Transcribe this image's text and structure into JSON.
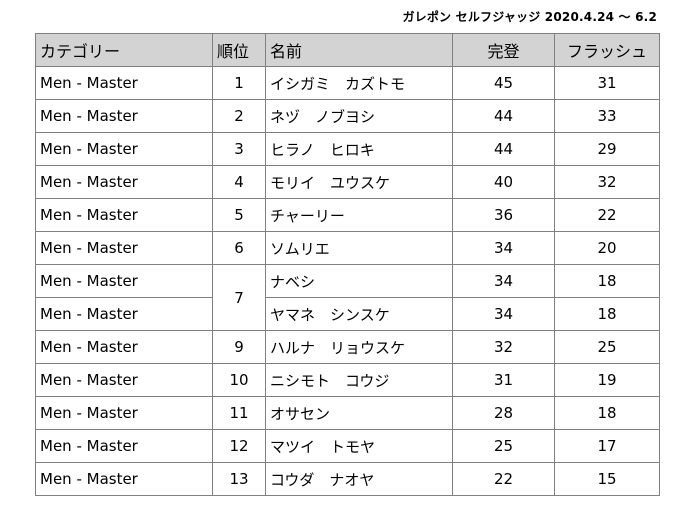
{
  "caption": "ガレポン セルフジャッジ 2020.4.24 〜 6.2",
  "headers": {
    "category": "カテゴリー",
    "rank": "順位",
    "name": "名前",
    "complete": "完登",
    "flash": "フラッシュ"
  },
  "rows": [
    {
      "category": "Men - Master",
      "rank": "1",
      "name": "イシガミ　カズトモ",
      "complete": "45",
      "flash": "31"
    },
    {
      "category": "Men - Master",
      "rank": "2",
      "name": "ネヅ　ノブヨシ",
      "complete": "44",
      "flash": "33"
    },
    {
      "category": "Men - Master",
      "rank": "3",
      "name": "ヒラノ　ヒロキ",
      "complete": "44",
      "flash": "29"
    },
    {
      "category": "Men - Master",
      "rank": "4",
      "name": "モリイ　ユウスケ",
      "complete": "40",
      "flash": "32"
    },
    {
      "category": "Men - Master",
      "rank": "5",
      "name": "チャーリー",
      "complete": "36",
      "flash": "22"
    },
    {
      "category": "Men - Master",
      "rank": "6",
      "name": "ソムリエ",
      "complete": "34",
      "flash": "20"
    },
    {
      "category": "Men - Master",
      "rank": "7",
      "name": "ナベシ",
      "complete": "34",
      "flash": "18"
    },
    {
      "category": "Men - Master",
      "rank": "",
      "name": "ヤマネ　シンスケ",
      "complete": "34",
      "flash": "18"
    },
    {
      "category": "Men - Master",
      "rank": "9",
      "name": "ハルナ　リョウスケ",
      "complete": "32",
      "flash": "25"
    },
    {
      "category": "Men - Master",
      "rank": "10",
      "name": "ニシモト　コウジ",
      "complete": "31",
      "flash": "19"
    },
    {
      "category": "Men - Master",
      "rank": "11",
      "name": "オサセン",
      "complete": "28",
      "flash": "18"
    },
    {
      "category": "Men - Master",
      "rank": "12",
      "name": "マツイ　トモヤ",
      "complete": "25",
      "flash": "17"
    },
    {
      "category": "Men - Master",
      "rank": "13",
      "name": "コウダ　ナオヤ",
      "complete": "22",
      "flash": "15"
    }
  ]
}
